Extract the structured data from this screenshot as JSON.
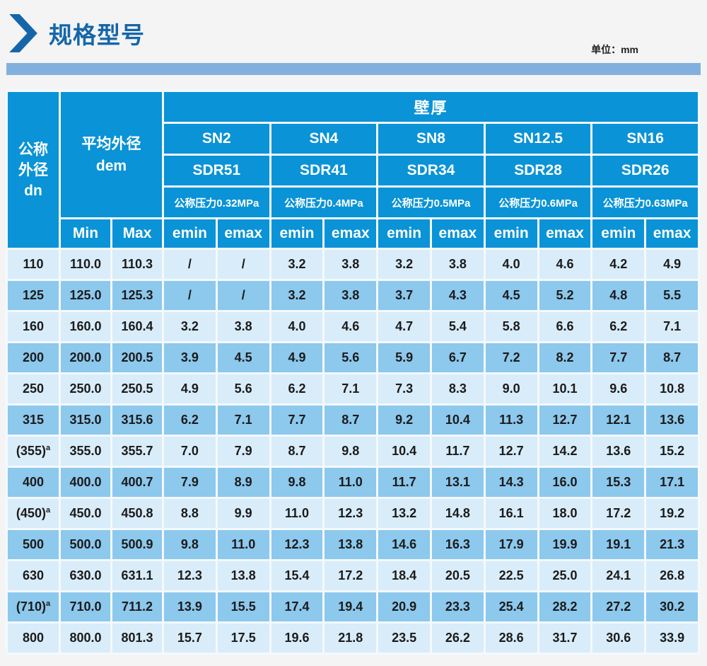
{
  "page": {
    "title": "规格型号",
    "unit_label": "单位：mm"
  },
  "colors": {
    "header_blue": "#0a93d6",
    "row_light": "#d9ecf9",
    "row_dark": "#8dc8ed",
    "grid": "#f3f9fd",
    "title_blue": "#1566a9",
    "band_blue": "#82b0dd"
  },
  "table": {
    "corner": {
      "line1": "公称",
      "line2": "外径",
      "line3": "dn"
    },
    "dem": {
      "line1": "平均外径",
      "line2": "dem"
    },
    "wall_label": "壁厚",
    "min_label": "Min",
    "max_label": "Max",
    "emin_label": "emin",
    "emax_label": "emax",
    "sn_groups": [
      {
        "sn": "SN2",
        "sdr": "SDR51",
        "pressure": "公称压力0.32MPa"
      },
      {
        "sn": "SN4",
        "sdr": "SDR41",
        "pressure": "公称压力0.4MPa"
      },
      {
        "sn": "SN8",
        "sdr": "SDR34",
        "pressure": "公称压力0.5MPa"
      },
      {
        "sn": "SN12.5",
        "sdr": "SDR28",
        "pressure": "公称压力0.6MPa"
      },
      {
        "sn": "SN16",
        "sdr": "SDR26",
        "pressure": "公称压力0.63MPa"
      }
    ],
    "rows": [
      {
        "dn": "110",
        "sup": "",
        "min": "110.0",
        "max": "110.3",
        "values": [
          "/",
          "/",
          "3.2",
          "3.8",
          "3.2",
          "3.8",
          "4.0",
          "4.6",
          "4.2",
          "4.9"
        ]
      },
      {
        "dn": "125",
        "sup": "",
        "min": "125.0",
        "max": "125.3",
        "values": [
          "/",
          "/",
          "3.2",
          "3.8",
          "3.7",
          "4.3",
          "4.5",
          "5.2",
          "4.8",
          "5.5"
        ]
      },
      {
        "dn": "160",
        "sup": "",
        "min": "160.0",
        "max": "160.4",
        "values": [
          "3.2",
          "3.8",
          "4.0",
          "4.6",
          "4.7",
          "5.4",
          "5.8",
          "6.6",
          "6.2",
          "7.1"
        ]
      },
      {
        "dn": "200",
        "sup": "",
        "min": "200.0",
        "max": "200.5",
        "values": [
          "3.9",
          "4.5",
          "4.9",
          "5.6",
          "5.9",
          "6.7",
          "7.2",
          "8.2",
          "7.7",
          "8.7"
        ]
      },
      {
        "dn": "250",
        "sup": "",
        "min": "250.0",
        "max": "250.5",
        "values": [
          "4.9",
          "5.6",
          "6.2",
          "7.1",
          "7.3",
          "8.3",
          "9.0",
          "10.1",
          "9.6",
          "10.8"
        ]
      },
      {
        "dn": "315",
        "sup": "",
        "min": "315.0",
        "max": "315.6",
        "values": [
          "6.2",
          "7.1",
          "7.7",
          "8.7",
          "9.2",
          "10.4",
          "11.3",
          "12.7",
          "12.1",
          "13.6"
        ]
      },
      {
        "dn": "(355)",
        "sup": "a",
        "min": "355.0",
        "max": "355.7",
        "values": [
          "7.0",
          "7.9",
          "8.7",
          "9.8",
          "10.4",
          "11.7",
          "12.7",
          "14.2",
          "13.6",
          "15.2"
        ]
      },
      {
        "dn": "400",
        "sup": "",
        "min": "400.0",
        "max": "400.7",
        "values": [
          "7.9",
          "8.9",
          "9.8",
          "11.0",
          "11.7",
          "13.1",
          "14.3",
          "16.0",
          "15.3",
          "17.1"
        ]
      },
      {
        "dn": "(450)",
        "sup": "a",
        "min": "450.0",
        "max": "450.8",
        "values": [
          "8.8",
          "9.9",
          "11.0",
          "12.3",
          "13.2",
          "14.8",
          "16.1",
          "18.0",
          "17.2",
          "19.2"
        ]
      },
      {
        "dn": "500",
        "sup": "",
        "min": "500.0",
        "max": "500.9",
        "values": [
          "9.8",
          "11.0",
          "12.3",
          "13.8",
          "14.6",
          "16.3",
          "17.9",
          "19.9",
          "19.1",
          "21.3"
        ]
      },
      {
        "dn": "630",
        "sup": "",
        "min": "630.0",
        "max": "631.1",
        "values": [
          "12.3",
          "13.8",
          "15.4",
          "17.2",
          "18.4",
          "20.5",
          "22.5",
          "25.0",
          "24.1",
          "26.8"
        ]
      },
      {
        "dn": "(710)",
        "sup": "a",
        "min": "710.0",
        "max": "711.2",
        "values": [
          "13.9",
          "15.5",
          "17.4",
          "19.4",
          "20.9",
          "23.3",
          "25.4",
          "28.2",
          "27.2",
          "30.2"
        ]
      },
      {
        "dn": "800",
        "sup": "",
        "min": "800.0",
        "max": "801.3",
        "values": [
          "15.7",
          "17.5",
          "19.6",
          "21.8",
          "23.5",
          "26.2",
          "28.6",
          "31.7",
          "30.6",
          "33.9"
        ]
      }
    ]
  }
}
